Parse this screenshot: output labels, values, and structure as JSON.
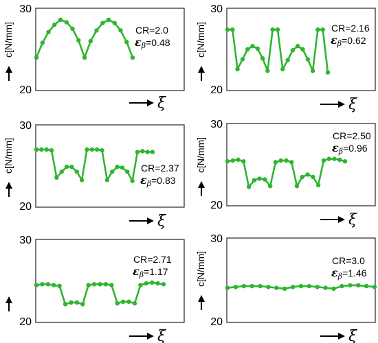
{
  "series_color": "#2fb52f",
  "chart_data": [
    {
      "type": "line",
      "ylabel": "c[N/mm]",
      "xlabel": "ξ",
      "ylim": [
        20,
        30
      ],
      "yticks": [
        20,
        30
      ],
      "annotation": {
        "cr": "CR=2.0",
        "eps_symbol": "ε",
        "eps_sub": "β",
        "eps_value": "=0.48"
      },
      "y": [
        24.0,
        25.8,
        27.1,
        28.0,
        28.6,
        28.3,
        27.5,
        26.1,
        24.0,
        26.0,
        27.3,
        28.2,
        28.6,
        28.2,
        27.3,
        25.9,
        24.0
      ]
    },
    {
      "type": "line",
      "ylabel": "c[N/mm]",
      "xlabel": "ξ",
      "ylim": [
        20,
        30
      ],
      "yticks": [
        20,
        30
      ],
      "annotation": {
        "cr": "CR=2.16",
        "eps_symbol": "ε",
        "eps_sub": "β",
        "eps_value": "=0.62"
      },
      "y": [
        27.4,
        27.4,
        22.6,
        23.8,
        25.0,
        25.4,
        25.1,
        23.9,
        22.4,
        27.4,
        27.4,
        22.6,
        23.7,
        24.9,
        25.4,
        25.0,
        23.8,
        22.4,
        27.4,
        27.4,
        22.2
      ]
    },
    {
      "type": "line",
      "ylabel": "c[N/mm]",
      "xlabel": "ξ",
      "ylim": [
        20,
        30
      ],
      "yticks": [
        20,
        30
      ],
      "annotation": {
        "cr": "CR=2.37",
        "eps_symbol": "ε",
        "eps_sub": "β",
        "eps_value": "=0.83"
      },
      "y": [
        27.0,
        27.0,
        27.0,
        26.9,
        23.6,
        24.3,
        24.9,
        24.9,
        24.3,
        23.3,
        27.0,
        27.0,
        27.0,
        26.9,
        23.3,
        24.3,
        24.9,
        24.8,
        24.3,
        23.2,
        26.7,
        26.8,
        26.7,
        26.7
      ]
    },
    {
      "type": "line",
      "ylabel": "c[N/mm]",
      "xlabel": "ξ",
      "ylim": [
        20,
        30
      ],
      "yticks": [
        20,
        30
      ],
      "annotation": {
        "cr": "CR=2.50",
        "eps_symbol": "ε",
        "eps_sub": "β",
        "eps_value": "=0.96"
      },
      "y": [
        25.4,
        25.5,
        25.6,
        25.4,
        22.3,
        23.1,
        23.3,
        23.2,
        22.4,
        25.3,
        25.5,
        25.5,
        25.3,
        22.4,
        23.5,
        23.8,
        23.5,
        22.5,
        25.5,
        25.7,
        25.7,
        25.6,
        25.4
      ]
    },
    {
      "type": "line",
      "ylabel": "",
      "xlabel": "ξ",
      "ylim": [
        20,
        30
      ],
      "yticks": [
        20,
        30
      ],
      "annotation": {
        "cr": "CR=2.71",
        "eps_symbol": "ε",
        "eps_sub": "β",
        "eps_value": "=1.17"
      },
      "y": [
        24.5,
        24.6,
        24.6,
        24.5,
        24.4,
        22.2,
        22.4,
        22.4,
        22.2,
        24.5,
        24.6,
        24.6,
        24.6,
        24.5,
        22.3,
        22.5,
        22.5,
        22.3,
        24.5,
        24.7,
        24.8,
        24.7,
        24.6
      ]
    },
    {
      "type": "line",
      "ylabel": "c[N/mm]",
      "xlabel": "ξ",
      "ylim": [
        20,
        30
      ],
      "yticks": [
        20,
        30
      ],
      "annotation": {
        "cr": "CR=3.0",
        "eps_symbol": "ε",
        "eps_sub": "β",
        "eps_value": "=1.46"
      },
      "y": [
        24.1,
        24.2,
        24.3,
        24.3,
        24.3,
        24.2,
        24.1,
        24.0,
        24.2,
        24.3,
        24.3,
        24.2,
        24.1,
        24.0,
        24.3,
        24.4,
        24.4,
        24.3,
        24.2
      ]
    }
  ]
}
